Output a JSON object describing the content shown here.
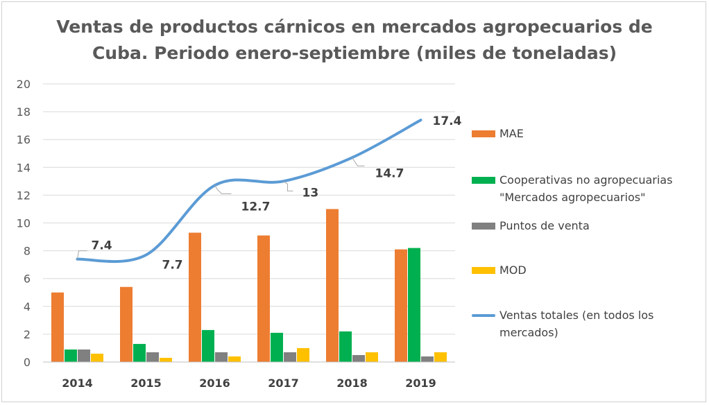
{
  "chart_data": {
    "type": "bar",
    "title_lines": [
      "Ventas de productos cárnicos en mercados agropecuarios de",
      "Cuba. Periodo enero-septiembre (miles de toneladas)"
    ],
    "categories": [
      "2014",
      "2015",
      "2016",
      "2017",
      "2018",
      "2019"
    ],
    "ylim": [
      0,
      20
    ],
    "y_ticks": [
      "0",
      "2",
      "4",
      "6",
      "8",
      "10",
      "12",
      "14",
      "16",
      "18",
      "20"
    ],
    "grid": true,
    "legend_position": "right",
    "series": [
      {
        "name": "MAE",
        "type": "bar",
        "color": "#ED7D31",
        "values": [
          5.0,
          5.4,
          9.3,
          9.1,
          11.0,
          8.1
        ]
      },
      {
        "name": "Cooperativas no agropecuarias\n\"Mercados agropecuarios\"",
        "type": "bar",
        "color": "#00B050",
        "values": [
          0.9,
          1.3,
          2.3,
          2.1,
          2.2,
          8.2
        ]
      },
      {
        "name": "Puntos de venta",
        "type": "bar",
        "color": "#808080",
        "values": [
          0.9,
          0.7,
          0.7,
          0.7,
          0.5,
          0.4
        ]
      },
      {
        "name": "MOD",
        "type": "bar",
        "color": "#FFC000",
        "values": [
          0.6,
          0.3,
          0.4,
          1.0,
          0.7,
          0.7
        ]
      },
      {
        "name": "Ventas totales (en todos los\nmercados)",
        "type": "line",
        "color": "#5B9BD5",
        "values": [
          7.4,
          7.7,
          12.7,
          13,
          14.7,
          17.4
        ],
        "labels": [
          "7.4",
          "7.7",
          "12.7",
          "13",
          "14.7",
          "17.4"
        ]
      }
    ]
  }
}
